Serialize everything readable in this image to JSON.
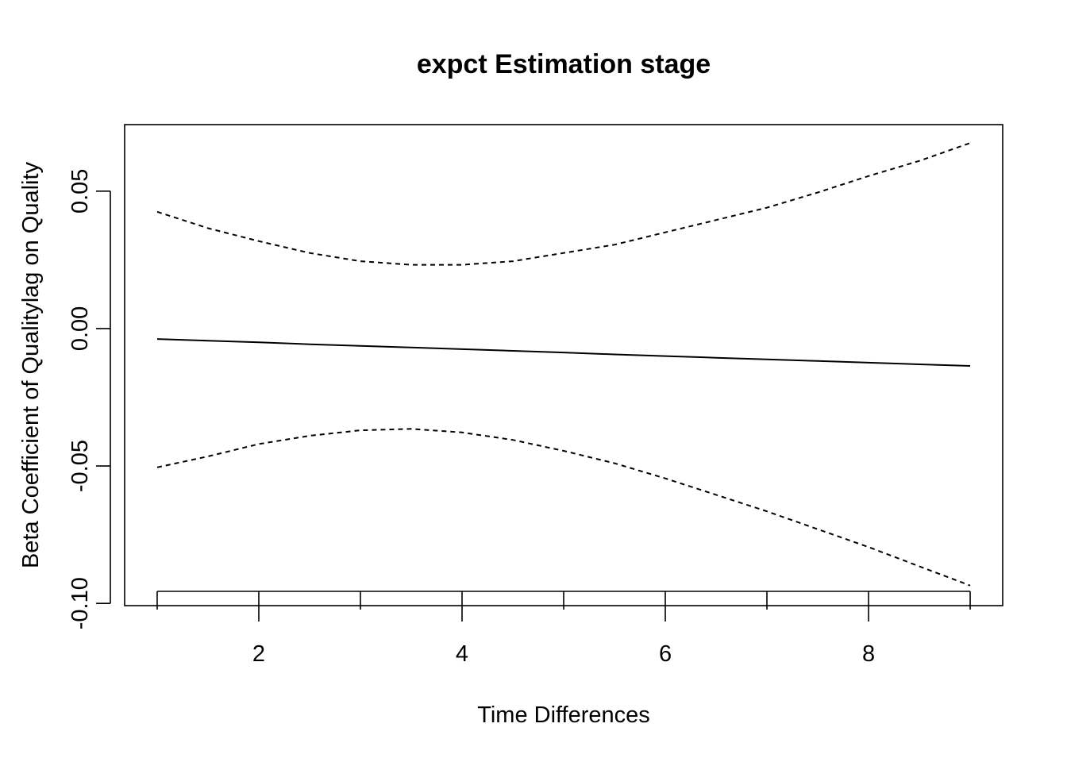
{
  "chart_data": {
    "type": "line",
    "title": "expct Estimation stage",
    "xlabel": "Time Differences",
    "ylabel": "Beta Coefficient of Qualitylag on Quality",
    "xlim": [
      0.68,
      9.32
    ],
    "ylim": [
      -0.1008,
      0.0742
    ],
    "x_ticks": [
      2,
      4,
      6,
      8
    ],
    "x_tick_labels": [
      "2",
      "4",
      "6",
      "8"
    ],
    "x_minor_ticks": [
      1,
      2,
      3,
      4,
      5,
      6,
      7,
      8,
      9
    ],
    "y_ticks": [
      -0.1,
      -0.05,
      0.0,
      0.05
    ],
    "y_tick_labels": [
      "-0.10",
      "-0.05",
      "0.00",
      "0.05"
    ],
    "grid": false,
    "legend": "none",
    "x": [
      1,
      1.5,
      2,
      2.5,
      3,
      3.5,
      4,
      4.5,
      5,
      5.5,
      6,
      6.5,
      7,
      7.5,
      8,
      8.5,
      9
    ],
    "series": [
      {
        "style": "solid",
        "color": "#000000",
        "values": [
          -0.0038,
          -0.0044,
          -0.005,
          -0.0057,
          -0.0063,
          -0.0069,
          -0.0075,
          -0.0081,
          -0.0087,
          -0.0094,
          -0.01,
          -0.0106,
          -0.0112,
          -0.0118,
          -0.0124,
          -0.013,
          -0.0136
        ]
      },
      {
        "style": "dashed",
        "color": "#000000",
        "values": [
          0.0425,
          0.0365,
          0.0318,
          0.0275,
          0.0245,
          0.0232,
          0.0232,
          0.0245,
          0.0275,
          0.0305,
          0.035,
          0.0395,
          0.044,
          0.0495,
          0.0555,
          0.061,
          0.0675
        ]
      },
      {
        "style": "dashed",
        "color": "#000000",
        "values": [
          -0.0505,
          -0.0465,
          -0.042,
          -0.039,
          -0.037,
          -0.0365,
          -0.0378,
          -0.0405,
          -0.0445,
          -0.049,
          -0.0545,
          -0.0605,
          -0.0665,
          -0.073,
          -0.0795,
          -0.0865,
          -0.0935
        ]
      }
    ]
  }
}
